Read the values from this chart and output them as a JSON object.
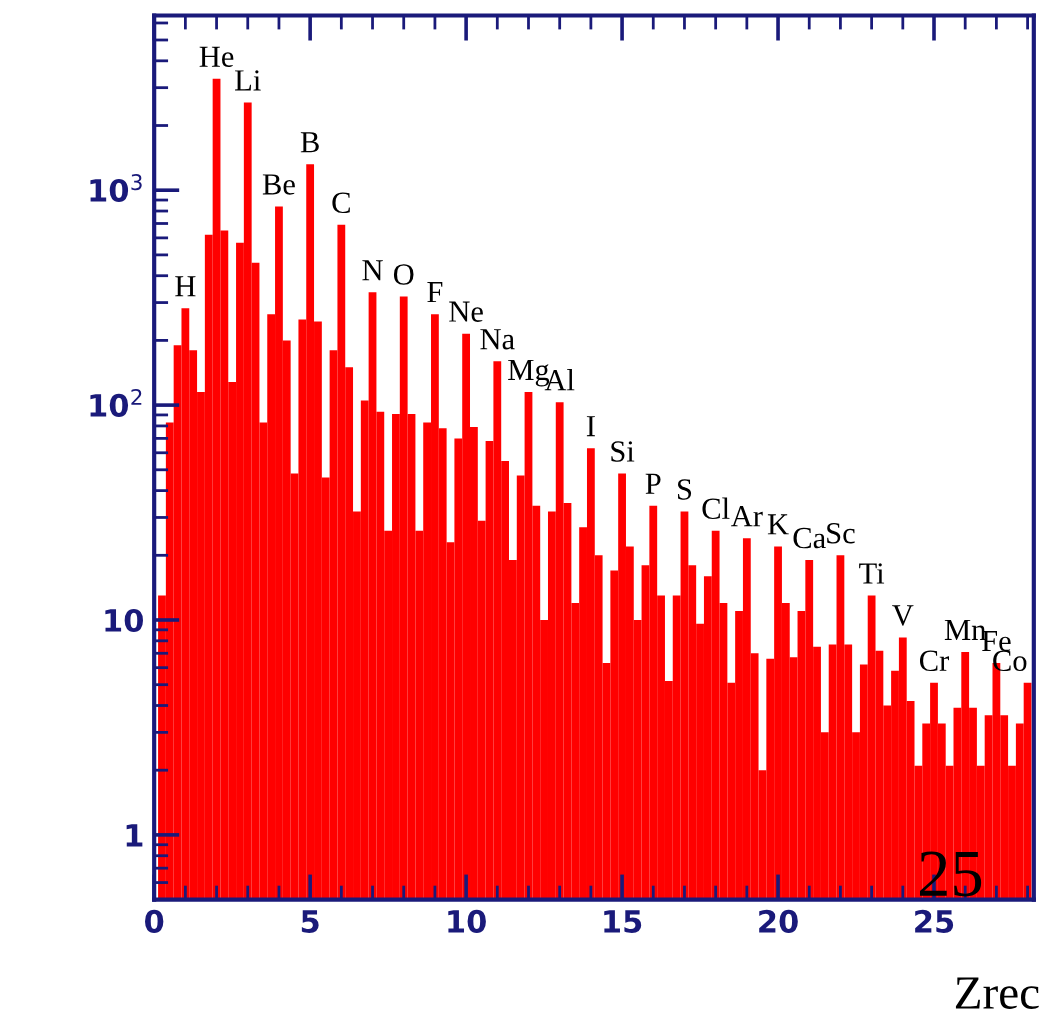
{
  "chart_data": {
    "type": "histogram",
    "xlabel": "Zrec",
    "color": "#ff0000",
    "bins": [
      0.125,
      0.375,
      0.625,
      0.875,
      1.125,
      1.375,
      1.625,
      1.875,
      2.125,
      2.375,
      2.625,
      2.875,
      3.125,
      3.375,
      3.625,
      3.875,
      4.125,
      4.375,
      4.625,
      4.875,
      5.125,
      5.375,
      5.625,
      5.875,
      6.125,
      6.375,
      6.625,
      6.875,
      7.125,
      7.375,
      7.625,
      7.875,
      8.125,
      8.375,
      8.625,
      8.875,
      9.125,
      9.375,
      9.625,
      9.875,
      10.125,
      10.375,
      10.625,
      10.875,
      11.125,
      11.375,
      11.625,
      11.875,
      12.125,
      12.375,
      12.625,
      12.875,
      13.125,
      13.375,
      13.625,
      13.875,
      14.125,
      14.375,
      14.625,
      14.875,
      15.125,
      15.375,
      15.625,
      15.875,
      16.125,
      16.375,
      16.625,
      16.875,
      17.125,
      17.375,
      17.625,
      17.875,
      18.125,
      18.375,
      18.625,
      18.875,
      19.125,
      19.375,
      19.625,
      19.875,
      20.125,
      20.375,
      20.625,
      20.875,
      21.125,
      21.375,
      21.625,
      21.875,
      22.125,
      22.375,
      22.625,
      22.875,
      23.125,
      23.375,
      23.625,
      23.875,
      24.125,
      24.375,
      24.625,
      24.875,
      25.125,
      25.375,
      25.625,
      25.875,
      26.125,
      26.375,
      26.625,
      26.875,
      27.125,
      27.375,
      27.625,
      27.875,
      28.125
    ],
    "values": [
      13,
      83,
      190,
      282,
      180,
      115,
      620,
      3300,
      650,
      128,
      570,
      2560,
      460,
      83,
      265,
      840,
      200,
      48,
      250,
      1320,
      245,
      46,
      180,
      690,
      150,
      32,
      105,
      335,
      93,
      26,
      91,
      320,
      91,
      26,
      83,
      265,
      78,
      23,
      70,
      215,
      79,
      29,
      68,
      160,
      55,
      19,
      47,
      115,
      34,
      10,
      32,
      103,
      35,
      12,
      27,
      63,
      20,
      6.3,
      17,
      48,
      22,
      10,
      18,
      34,
      13,
      5.2,
      13,
      32,
      18,
      9.6,
      16,
      26,
      12,
      5.1,
      11,
      24,
      7,
      2,
      6.6,
      22,
      12,
      6.7,
      11,
      19,
      7.5,
      3,
      7.7,
      20,
      7.7,
      3,
      6.2,
      13,
      7.2,
      4,
      5.8,
      8.3,
      4.2,
      2.1,
      3.3,
      5.1,
      3.3,
      2.1,
      3.9,
      7.1,
      3.9,
      2.1,
      3.6,
      6.3,
      3.6,
      2.1,
      3.3,
      5.1
    ],
    "log": "y",
    "xlim": [
      0,
      28.2
    ],
    "ylim": [
      0.5,
      6500
    ],
    "xticks": [
      0,
      5,
      10,
      15,
      20,
      25
    ],
    "yticks": [
      1,
      10,
      {
        "value": 100,
        "label": "10$^{2}$"
      },
      {
        "value": 1000,
        "label": "10$^{3}$"
      }
    ],
    "grid": false,
    "legend": false,
    "annotations": [
      {
        "text": "H",
        "x": 1,
        "y": 282
      },
      {
        "text": "He",
        "x": 2,
        "y": 3300
      },
      {
        "text": "Li",
        "x": 3,
        "y": 2560
      },
      {
        "text": "Be",
        "x": 4,
        "y": 840
      },
      {
        "text": "B",
        "x": 5,
        "y": 1320
      },
      {
        "text": "C",
        "x": 6,
        "y": 690
      },
      {
        "text": "N",
        "x": 7,
        "y": 335
      },
      {
        "text": "O",
        "x": 8,
        "y": 320
      },
      {
        "text": "F",
        "x": 9,
        "y": 265
      },
      {
        "text": "Ne",
        "x": 10,
        "y": 215
      },
      {
        "text": "Na",
        "x": 11,
        "y": 160
      },
      {
        "text": "Mg",
        "x": 12,
        "y": 115
      },
      {
        "text": "Al",
        "x": 13,
        "y": 103
      },
      {
        "text": "I",
        "x": 14,
        "y": 63
      },
      {
        "text": "Si",
        "x": 15,
        "y": 48
      },
      {
        "text": "P",
        "x": 16,
        "y": 34
      },
      {
        "text": "S",
        "x": 17,
        "y": 32
      },
      {
        "text": "Cl",
        "x": 18,
        "y": 26
      },
      {
        "text": "Ar",
        "x": 19,
        "y": 24
      },
      {
        "text": "K",
        "x": 20,
        "y": 22
      },
      {
        "text": "Ca",
        "x": 21,
        "y": 19
      },
      {
        "text": "Sc",
        "x": 22,
        "y": 20
      },
      {
        "text": "Ti",
        "x": 23,
        "y": 13
      },
      {
        "text": "V",
        "x": 24,
        "y": 8.3
      },
      {
        "text": "Cr",
        "x": 25,
        "y": 5.1
      },
      {
        "text": "Mn",
        "x": 26,
        "y": 7.1
      },
      {
        "text": "Fe",
        "x": 27,
        "y": 6.3
      },
      {
        "text": "Co",
        "x": 28,
        "y": 5.1
      },
      "25"
    ]
  }
}
